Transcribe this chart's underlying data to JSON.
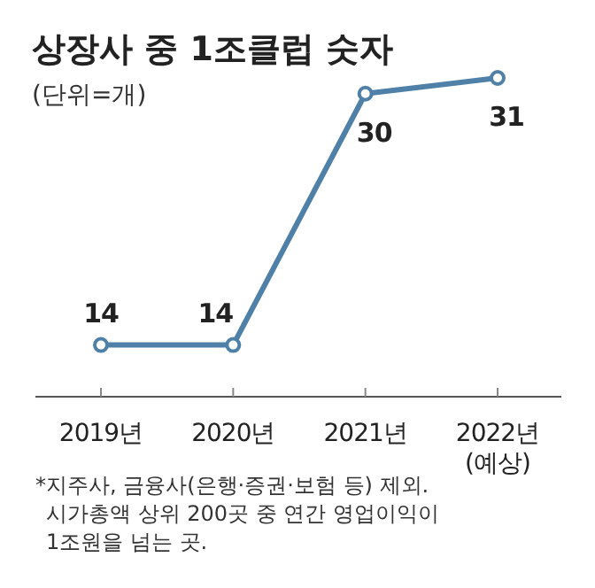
{
  "chart_data": {
    "type": "line",
    "title": "상장사 중 1조클럽 숫자",
    "subtitle": "(단위=개)",
    "categories": [
      "2019년",
      "2020년",
      "2021년",
      "2022년\n(예상)"
    ],
    "series": [
      {
        "color": "#4f80a8",
        "values": [
          14,
          14,
          30,
          31
        ]
      }
    ],
    "data_labels": true,
    "marker": "circle",
    "line_style": "solid",
    "annotations": [
      "*지주사, 금융사(은행·증권·보험 등) 제외. 시가총액 상위 200곳 중 연간 영업이익이 1조원을 넘는 곳."
    ]
  }
}
